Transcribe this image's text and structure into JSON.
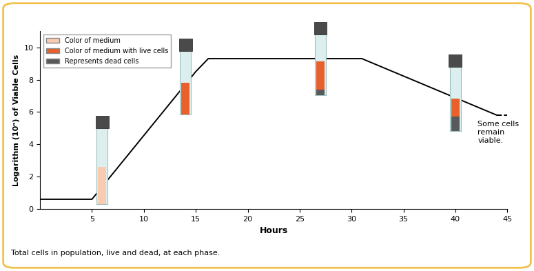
{
  "chart_data": {
    "type": "line",
    "x_label": "Hours",
    "y_label": "Logarithm (10ⁿ) of Viable Cells",
    "caption": "Total cells in population, live and dead, at each phase.",
    "annotation": "Some cells remain viable.",
    "xlim": [
      0,
      45
    ],
    "xticks": [
      5,
      10,
      15,
      20,
      25,
      30,
      35,
      40,
      45
    ],
    "ylim": [
      0,
      11
    ],
    "yticks": [
      0,
      2,
      4,
      6,
      8,
      10
    ],
    "legend": "upper left",
    "legend_entries": [
      {
        "label": "Color of medium",
        "color": "#f9cbb0"
      },
      {
        "label": "Color of medium with live cells",
        "color": "#e8602c"
      },
      {
        "label": "Represents dead cells",
        "color": "#58595b"
      }
    ],
    "series": [
      {
        "color": "#000000",
        "line_style": "solid",
        "x": [
          0,
          5,
          15,
          16.2,
          31,
          44
        ],
        "values": [
          0.6,
          0.6,
          8.5,
          9.3,
          9.3,
          5.8
        ]
      },
      {
        "color": "#000000",
        "line_style": "dashed",
        "x": [
          44,
          45
        ],
        "values": [
          5.8,
          5.8
        ]
      }
    ]
  }
}
